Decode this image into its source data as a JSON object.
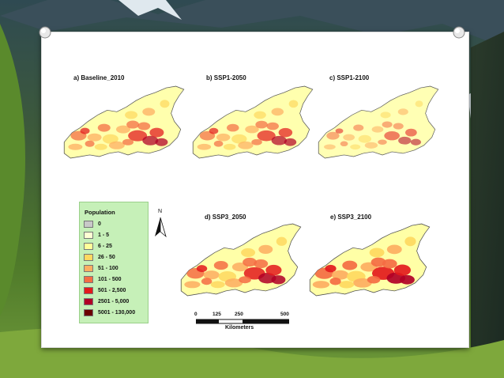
{
  "colors": {
    "population_0": "#c8c8c8",
    "population_1_5": "#ffffd4",
    "population_6_25": "#ffff99",
    "population_26_50": "#fed960",
    "population_51_100": "#fdae61",
    "population_101_500": "#f46d43",
    "population_501_2500": "#e31a1c",
    "population_2501_5000": "#b10026",
    "population_5001_130000": "#6b0000"
  },
  "maps": [
    {
      "title": "a) Baseline_2010",
      "intensity": 0.65
    },
    {
      "title": "b) SSP1-2050",
      "intensity": 0.6
    },
    {
      "title": "c) SSP1-2100",
      "intensity": 0.35
    },
    {
      "title": "d) SSP3_2050",
      "intensity": 0.85
    },
    {
      "title": "e) SSP3_2100",
      "intensity": 0.95
    }
  ],
  "legend": {
    "title": "Population",
    "items": [
      {
        "label": "0",
        "color": "#c8c8c8"
      },
      {
        "label": "1 - 5",
        "color": "#ffffd4"
      },
      {
        "label": "6 - 25",
        "color": "#ffff99"
      },
      {
        "label": "26 - 50",
        "color": "#fed960"
      },
      {
        "label": "51 - 100",
        "color": "#fdae61"
      },
      {
        "label": "101 - 500",
        "color": "#f46d43"
      },
      {
        "label": "501 - 2,500",
        "color": "#e31a1c"
      },
      {
        "label": "2501 - 5,000",
        "color": "#b10026"
      },
      {
        "label": "5001 - 130,000",
        "color": "#6b0000"
      }
    ]
  },
  "north_arrow": {
    "label": "N",
    "icon": "north-arrow-icon"
  },
  "scale_bar": {
    "ticks": [
      "0",
      "125",
      "250",
      "500"
    ],
    "units": "Kilometers"
  }
}
